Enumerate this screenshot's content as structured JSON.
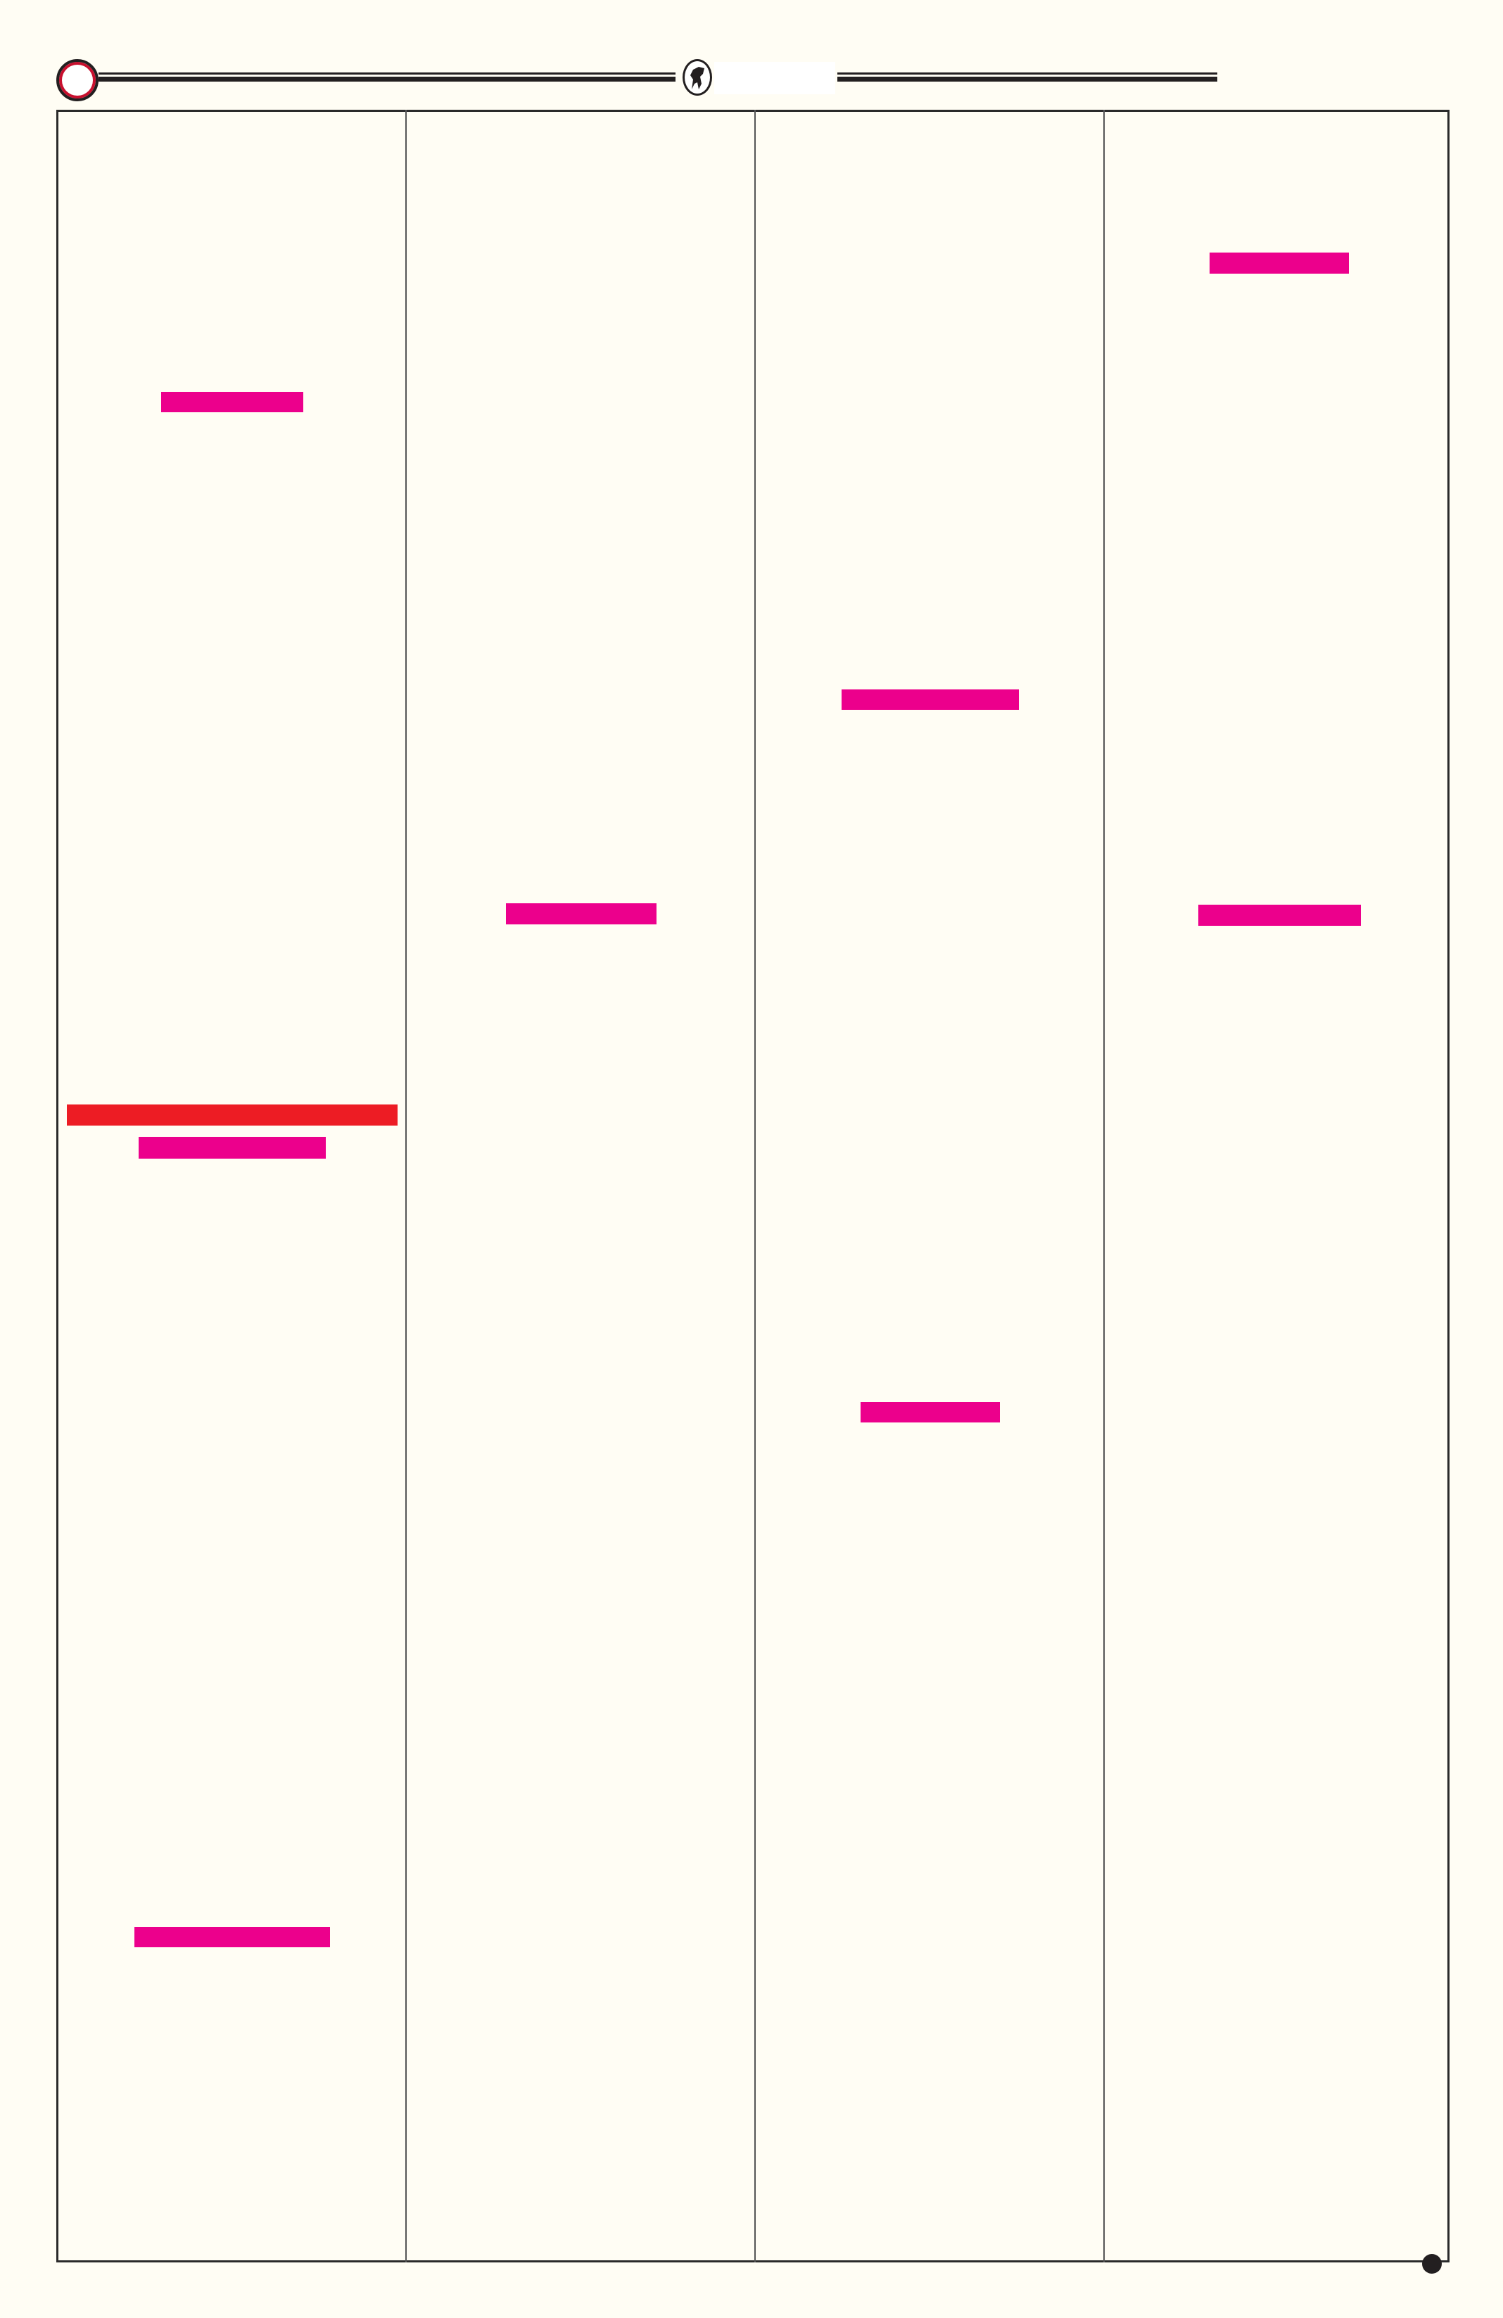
{
  "colors": {
    "background": "#fffdf4",
    "highlight_magenta": "#ec008c",
    "highlight_red": "#ed1c24",
    "rule": "#231f20"
  },
  "header": {
    "left_badge_icon": "red-ring-icon",
    "center_logo_icon": "horse-emblem-icon"
  },
  "columns": 4,
  "redaction_bars": [
    {
      "column": 1,
      "color": "magenta"
    },
    {
      "column": 1,
      "color": "red"
    },
    {
      "column": 1,
      "color": "magenta"
    },
    {
      "column": 1,
      "color": "magenta"
    },
    {
      "column": 2,
      "color": "magenta"
    },
    {
      "column": 3,
      "color": "magenta"
    },
    {
      "column": 3,
      "color": "magenta"
    },
    {
      "column": 4,
      "color": "magenta"
    },
    {
      "column": 4,
      "color": "magenta"
    }
  ],
  "footer": {
    "page_marker_icon": "dot-icon"
  }
}
